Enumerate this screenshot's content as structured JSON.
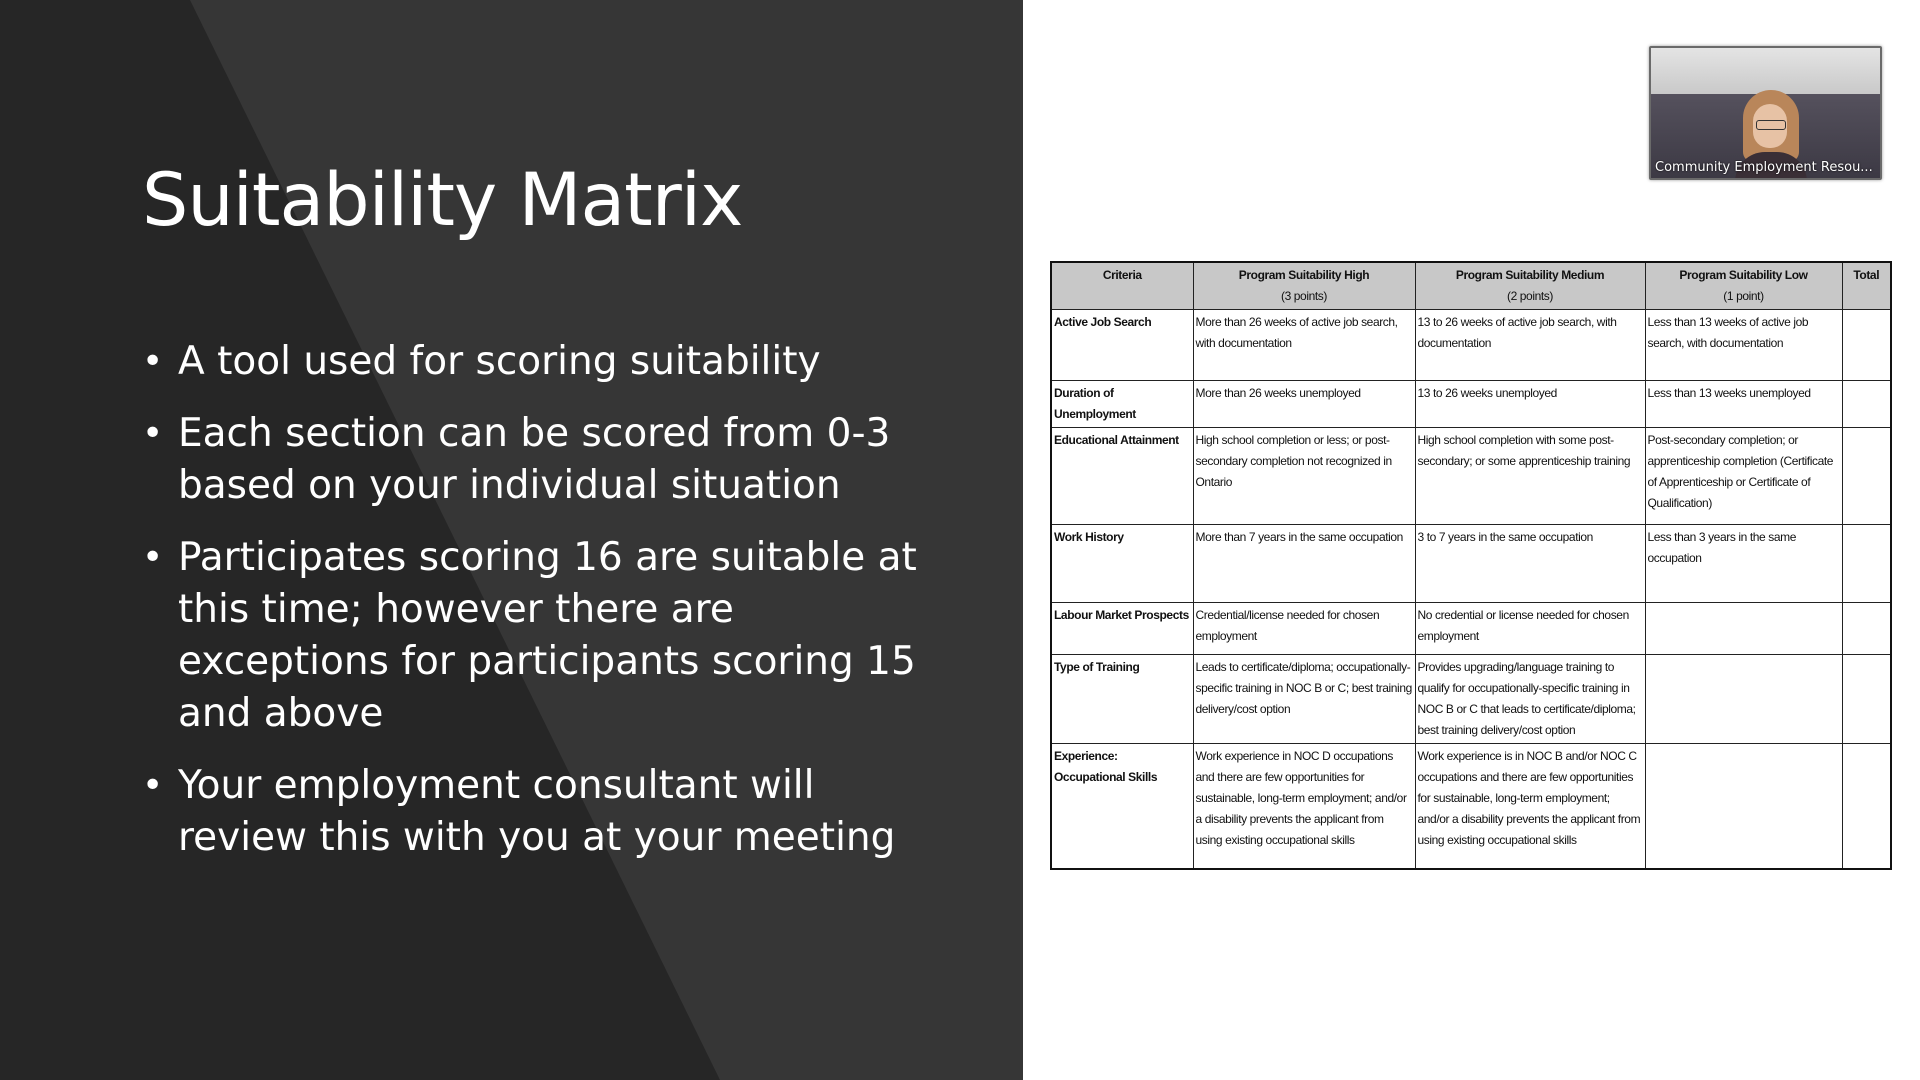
{
  "slide": {
    "title": "Suitability Matrix",
    "bullets": [
      "A tool used for scoring suitability",
      "Each section can be scored from 0-3 based on your individual situation",
      "Participates scoring 16 are suitable at this time; however there are exceptions for participants scoring 15 and above",
      "Your employment consultant will review this with you at your meeting"
    ]
  },
  "matrix": {
    "headers": {
      "criteria": "Criteria",
      "high": "Program Suitability High",
      "high_points": "(3 points)",
      "medium": "Program Suitability Medium",
      "medium_points": "(2 points)",
      "low": "Program Suitability Low",
      "low_points": "(1 point)",
      "total": "Total"
    },
    "rows": [
      {
        "criteria": "Active Job Search",
        "high": "More than 26 weeks of active job search, with documentation",
        "medium": "13 to 26 weeks of active job search, with documentation",
        "low": "Less than 13 weeks of active job search, with documentation",
        "total": ""
      },
      {
        "criteria": "Duration of Unemployment",
        "high": "More than 26 weeks unemployed",
        "medium": "13 to 26 weeks unemployed",
        "low": "Less than 13 weeks unemployed",
        "total": ""
      },
      {
        "criteria": "Educational Attainment",
        "high": "High school completion or less; or post-secondary completion not recognized in Ontario",
        "medium": "High school completion with some post-secondary; or some apprenticeship training",
        "low": "Post-secondary completion; or apprenticeship completion (Certificate of Apprenticeship or Certificate of Qualification)",
        "total": ""
      },
      {
        "criteria": "Work History",
        "high": "More than 7 years in the same occupation",
        "medium": "3 to 7 years in the same occupation",
        "low": "Less than 3 years in the same occupation",
        "total": ""
      },
      {
        "criteria": "Labour Market Prospects",
        "high": "Credential/license needed for chosen employment",
        "medium": "No credential or license needed for chosen employment",
        "low": "",
        "total": ""
      },
      {
        "criteria": "Type of Training",
        "high": "Leads to certificate/diploma; occupationally-specific training in NOC B or C; best training delivery/cost option",
        "medium": "Provides upgrading/language training to qualify for occupationally-specific training in NOC B or C that leads to certificate/diploma; best training delivery/cost option",
        "low": "",
        "total": ""
      },
      {
        "criteria": "Experience: Occupational Skills",
        "high": "Work experience in NOC D occupations and there are few opportunities for sustainable, long-term employment; and/or a disability prevents the applicant from using existing occupational skills",
        "medium": "Work experience is in NOC B and/or NOC C occupations and there are few opportunities for sustainable, long-term employment; and/or a disability prevents the applicant from using existing occupational skills",
        "low": "",
        "total": ""
      }
    ]
  },
  "video": {
    "participant_name": "Community Employment Resou..."
  }
}
